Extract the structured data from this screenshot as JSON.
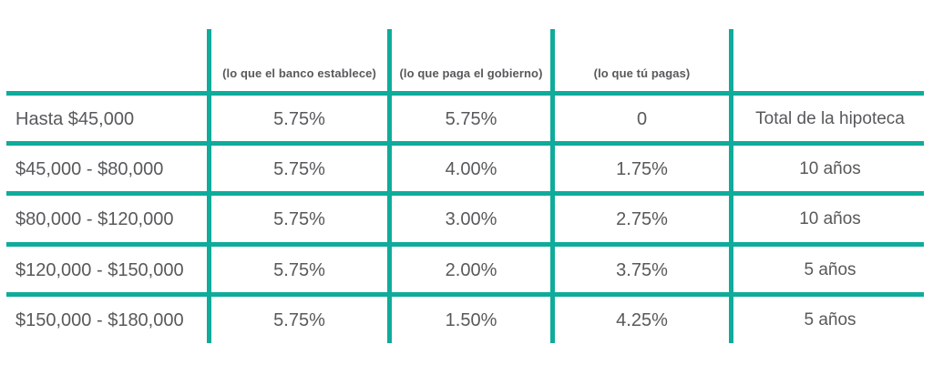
{
  "theme": {
    "accent_color": "#0fab9b",
    "text_color": "#58595b",
    "background_color": "#ffffff"
  },
  "chart_data": {
    "type": "table",
    "title": "",
    "grid": true,
    "grid_color": "#0fab9b",
    "headers": [
      "",
      "(lo que el banco establece)",
      "(lo que paga el gobierno)",
      "(lo que tú pagas)",
      ""
    ],
    "rows": [
      [
        "Hasta $45,000",
        "5.75%",
        "5.75%",
        "0",
        "Total de la hipoteca"
      ],
      [
        "$45,000 - $80,000",
        "5.75%",
        "4.00%",
        "1.75%",
        "10 años"
      ],
      [
        "$80,000 - $120,000",
        "5.75%",
        "3.00%",
        "2.75%",
        "10 años"
      ],
      [
        "$120,000 - $150,000",
        "5.75%",
        "2.00%",
        "3.75%",
        "5 años"
      ],
      [
        "$150,000 - $180,000",
        "5.75%",
        "1.50%",
        "4.25%",
        "5 años"
      ]
    ]
  }
}
